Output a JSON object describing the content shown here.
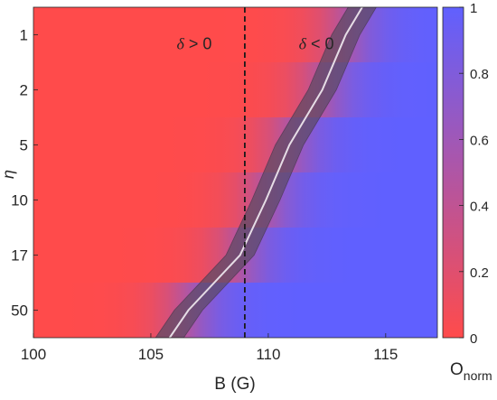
{
  "chart_data": {
    "type": "heatmap",
    "xlabel": "B (G)",
    "ylabel": "η",
    "xlim": [
      100,
      117.2
    ],
    "x_ticks": [
      100,
      105,
      110,
      115
    ],
    "y_categories": [
      "1",
      "2",
      "5",
      "10",
      "17",
      "50"
    ],
    "colorbar": {
      "label": "O",
      "label_sub": "norm",
      "range": [
        0,
        1
      ],
      "ticks": [
        "0",
        "0.2",
        "0.4",
        "0.6",
        "0.8",
        "1"
      ],
      "low_color": "#ff4b4b",
      "high_color": "#6060ff"
    },
    "crossover": {
      "name": "center",
      "color": "#e6dde6",
      "band_color": "#5a4a63",
      "points": [
        {
          "row": "1",
          "B": 113.3
        },
        {
          "row": "2",
          "B": 112.3
        },
        {
          "row": "5",
          "B": 110.9
        },
        {
          "row": "10",
          "B": 109.9
        },
        {
          "row": "17",
          "B": 108.8
        },
        {
          "row": "50",
          "B": 106.6
        }
      ],
      "top_B": 114.0,
      "bottom_B": 105.8,
      "band_halfwidth": 0.6,
      "transition_width": 3.2
    },
    "reference_line": {
      "B": 109.0,
      "style": "dashed",
      "color": "#1a1a1a"
    },
    "annotations": [
      {
        "text": "δ > 0",
        "B": 106.1,
        "row_pos": 0.05
      },
      {
        "text": "δ < 0",
        "B": 111.3,
        "row_pos": 0.05
      }
    ]
  }
}
